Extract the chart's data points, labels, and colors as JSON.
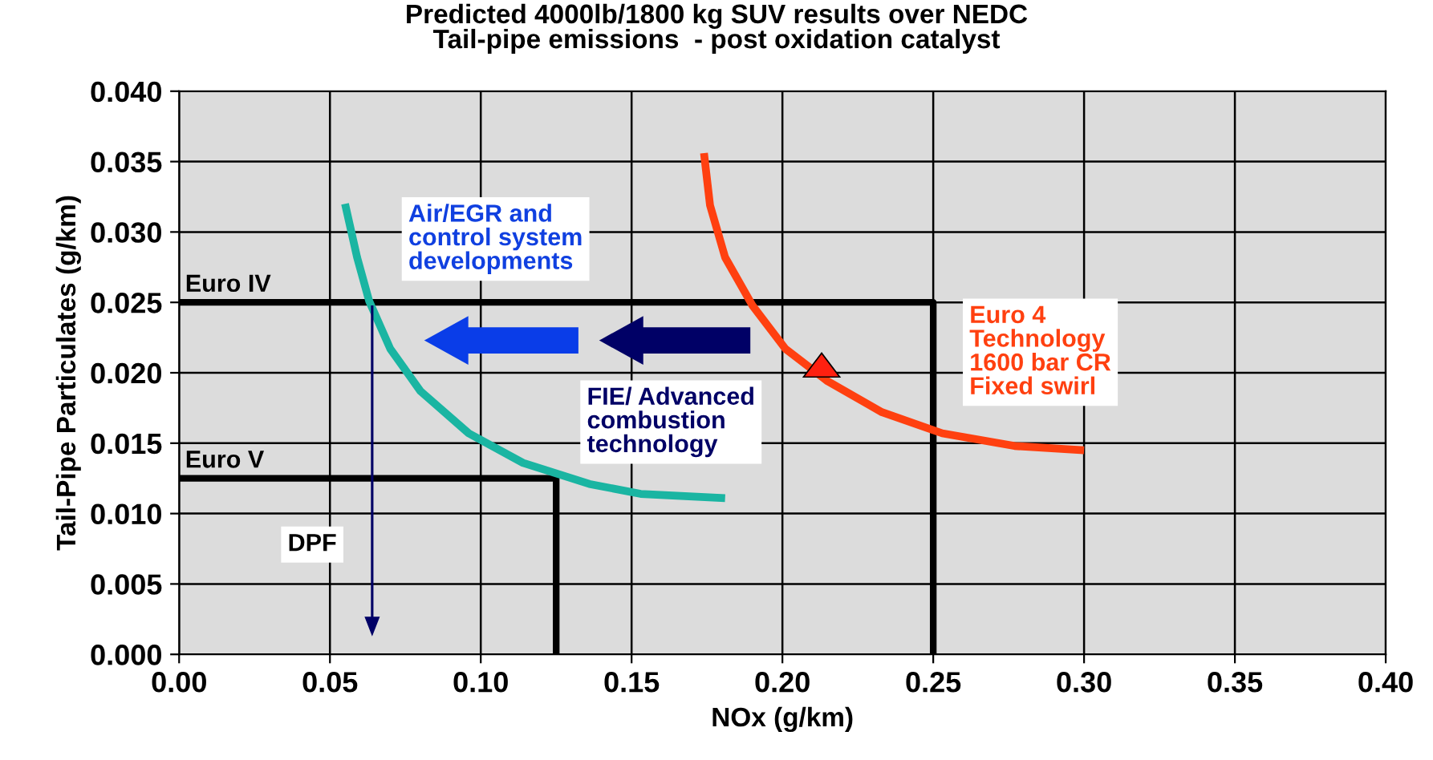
{
  "chart_data": {
    "type": "line",
    "title": "Predicted 4000lb/1800 kg SUV results over NEDC\nTail-pipe emissions  - post oxidation catalyst",
    "xlabel": "NOx (g/km)",
    "ylabel": "Tail-Pipe Particulates (g/km)",
    "xlim": [
      0,
      0.4
    ],
    "ylim": [
      0,
      0.04
    ],
    "xticks": [
      {
        "value": 0,
        "label": "0.00"
      },
      {
        "value": 0.05,
        "label": "0.05"
      },
      {
        "value": 0.1,
        "label": "0.10"
      },
      {
        "value": 0.15,
        "label": "0.15"
      },
      {
        "value": 0.2,
        "label": "0.20"
      },
      {
        "value": 0.25,
        "label": "0.25"
      },
      {
        "value": 0.3,
        "label": "0.30"
      },
      {
        "value": 0.35,
        "label": "0.35"
      },
      {
        "value": 0.4,
        "label": "0.40"
      }
    ],
    "yticks": [
      {
        "value": 0,
        "label": "0.000"
      },
      {
        "value": 0.005,
        "label": "0.005"
      },
      {
        "value": 0.01,
        "label": "0.010"
      },
      {
        "value": 0.015,
        "label": "0.015"
      },
      {
        "value": 0.02,
        "label": "0.020"
      },
      {
        "value": 0.025,
        "label": "0.025"
      },
      {
        "value": 0.03,
        "label": "0.030"
      },
      {
        "value": 0.035,
        "label": "0.035"
      },
      {
        "value": 0.04,
        "label": "0.040"
      }
    ],
    "grid": true,
    "legend": false,
    "marker": "none",
    "line_style": "solid",
    "series": [
      {
        "name": "Euro IV",
        "color": "#000000",
        "x": [
          0,
          0.25,
          0.25
        ],
        "values": [
          0.025,
          0.025,
          0
        ]
      },
      {
        "name": "Euro V",
        "color": "#000000",
        "x": [
          0,
          0.125,
          0.125
        ],
        "values": [
          0.0125,
          0.0125,
          0
        ]
      },
      {
        "color": "#1ab5a2",
        "x": [
          0.055,
          0.059,
          0.063,
          0.07,
          0.08,
          0.096,
          0.114,
          0.136,
          0.153,
          0.181
        ],
        "values": [
          0.032,
          0.0282,
          0.0251,
          0.0217,
          0.0187,
          0.0157,
          0.0136,
          0.0121,
          0.0114,
          0.0111
        ]
      },
      {
        "color": "#ff4010",
        "x": [
          0.174,
          0.176,
          0.181,
          0.19,
          0.201,
          0.215,
          0.233,
          0.253,
          0.277,
          0.3
        ],
        "values": [
          0.0356,
          0.0319,
          0.0282,
          0.0248,
          0.0217,
          0.0194,
          0.0172,
          0.0157,
          0.0148,
          0.0145
        ]
      }
    ],
    "annotations": [
      "Air/EGR and\ncontrol system\ndevelopments",
      "FIE/ Advanced\ncombustion\ntechnology",
      "Euro 4\nTechnology\n1600 bar CR\nFixed swirl",
      "DPF"
    ]
  }
}
